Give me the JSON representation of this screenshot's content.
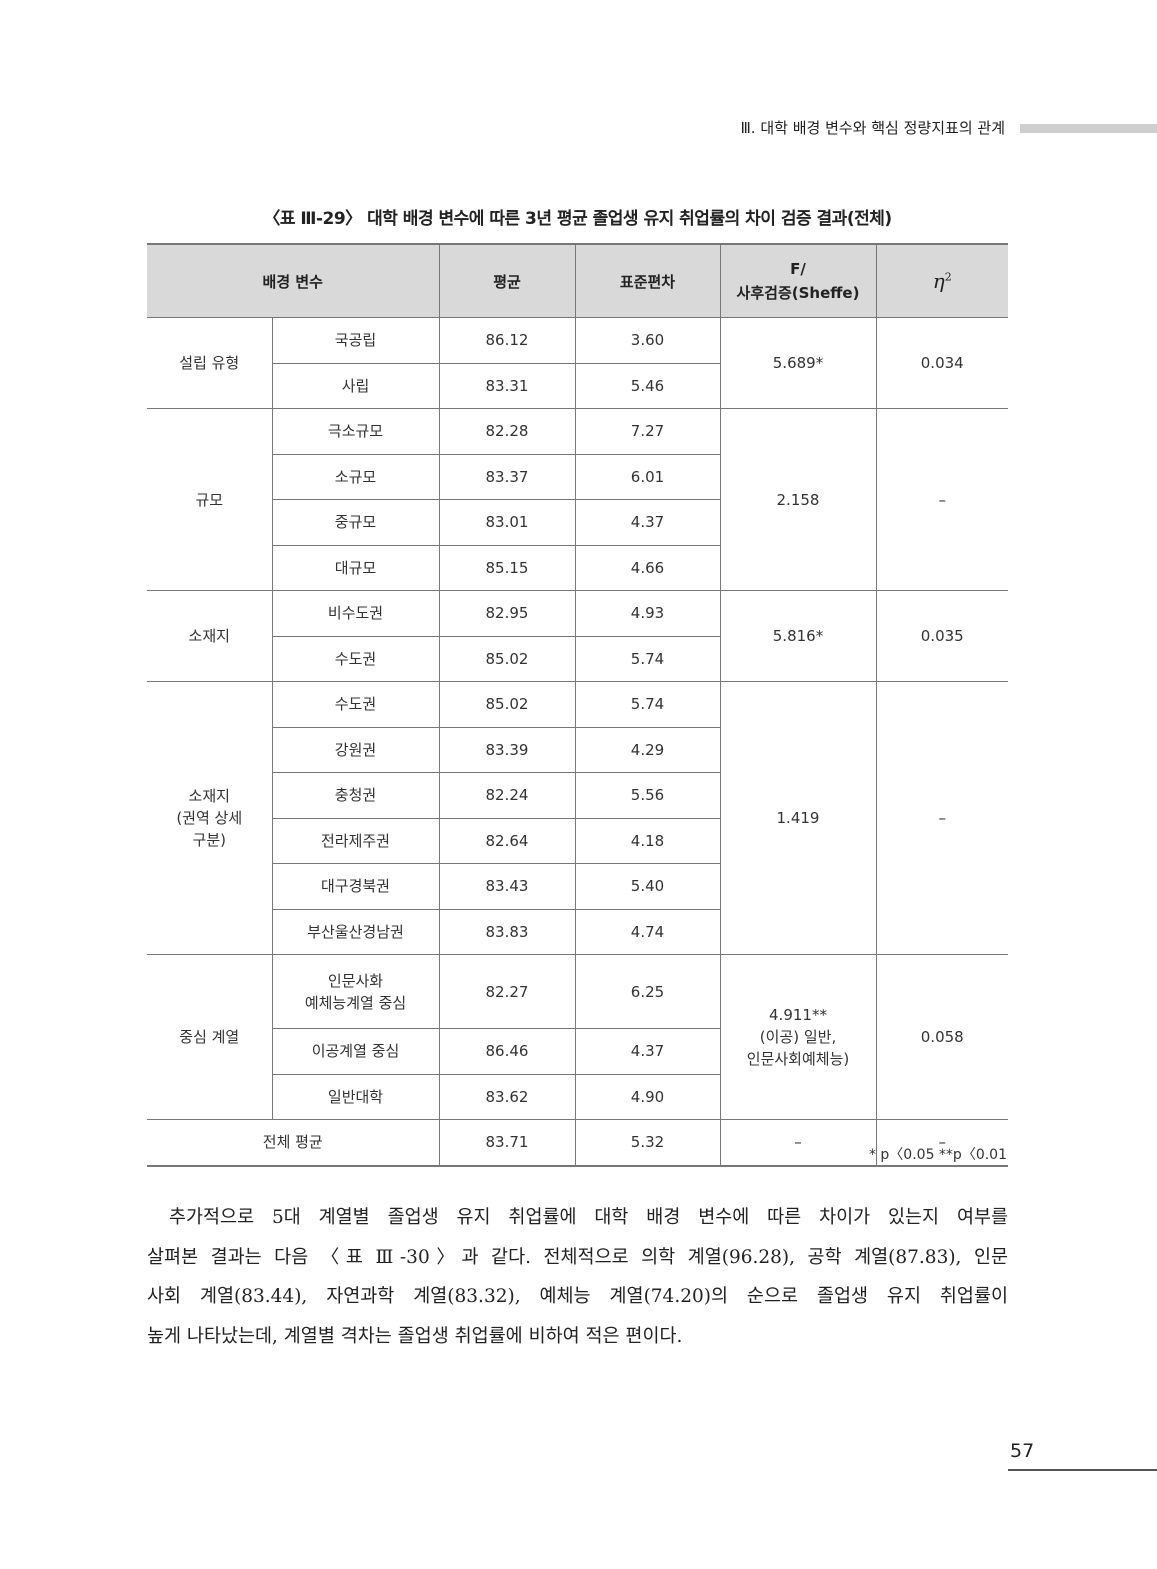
{
  "running_header": "Ⅲ. 대학 배경 변수와 핵심 정량지표의 관계",
  "table": {
    "caption": "〈표 Ⅲ-29〉 대학 배경 변수에 따른 3년 평균 졸업생 유지 취업률의 차이 검증 결과(전체)",
    "headers": {
      "variable": "배경 변수",
      "mean": "평균",
      "sd": "표준편차",
      "f": "F/\n사후검증(Sheffe)",
      "eta": "η",
      "eta_sup": "2"
    },
    "groups": [
      {
        "label": "설립 유형",
        "f": "5.689*",
        "eta": "0.034",
        "rows": [
          [
            "국공립",
            "86.12",
            "3.60"
          ],
          [
            "사립",
            "83.31",
            "5.46"
          ]
        ]
      },
      {
        "label": "규모",
        "f": "2.158",
        "eta": "–",
        "rows": [
          [
            "극소규모",
            "82.28",
            "7.27"
          ],
          [
            "소규모",
            "83.37",
            "6.01"
          ],
          [
            "중규모",
            "83.01",
            "4.37"
          ],
          [
            "대규모",
            "85.15",
            "4.66"
          ]
        ]
      },
      {
        "label": "소재지",
        "f": "5.816*",
        "eta": "0.035",
        "rows": [
          [
            "비수도권",
            "82.95",
            "4.93"
          ],
          [
            "수도권",
            "85.02",
            "5.74"
          ]
        ]
      },
      {
        "label": "소재지\n(권역 상세\n구분)",
        "f": "1.419",
        "eta": "–",
        "rows": [
          [
            "수도권",
            "85.02",
            "5.74"
          ],
          [
            "강원권",
            "83.39",
            "4.29"
          ],
          [
            "충청권",
            "82.24",
            "5.56"
          ],
          [
            "전라제주권",
            "82.64",
            "4.18"
          ],
          [
            "대구경북권",
            "83.43",
            "5.40"
          ],
          [
            "부산울산경남권",
            "83.83",
            "4.74"
          ]
        ]
      },
      {
        "label": "중심 계열",
        "f": "4.911**\n(이공) 일반,\n인문사회예체능)",
        "eta": "0.058",
        "rows": [
          [
            "인문사화\n예체능계열 중심",
            "82.27",
            "6.25"
          ],
          [
            "이공계열 중심",
            "86.46",
            "4.37"
          ],
          [
            "일반대학",
            "83.62",
            "4.90"
          ]
        ]
      }
    ],
    "total": {
      "label": "전체 평균",
      "mean": "83.71",
      "sd": "5.32",
      "f": "–",
      "eta": "–"
    },
    "note": "*  p〈0.05  **p〈0.01"
  },
  "paragraph_lines": [
    "추가적으로 5대 계열별 졸업생 유지 취업률에 대학 배경 변수에 따른 차이가 있는지 여부를",
    "살펴본 결과는 다음 〈표 Ⅲ-30〉과 같다. 전체적으로 의학 계열(96.28), 공학 계열(87.83), 인문",
    "사회 계열(83.44), 자연과학 계열(83.32),  예체능 계열(74.20)의 순으로 졸업생 유지 취업률이",
    "높게 나타났는데, 계열별 격차는 졸업생 취업률에 비하여 적은 편이다."
  ],
  "page_number": "57"
}
